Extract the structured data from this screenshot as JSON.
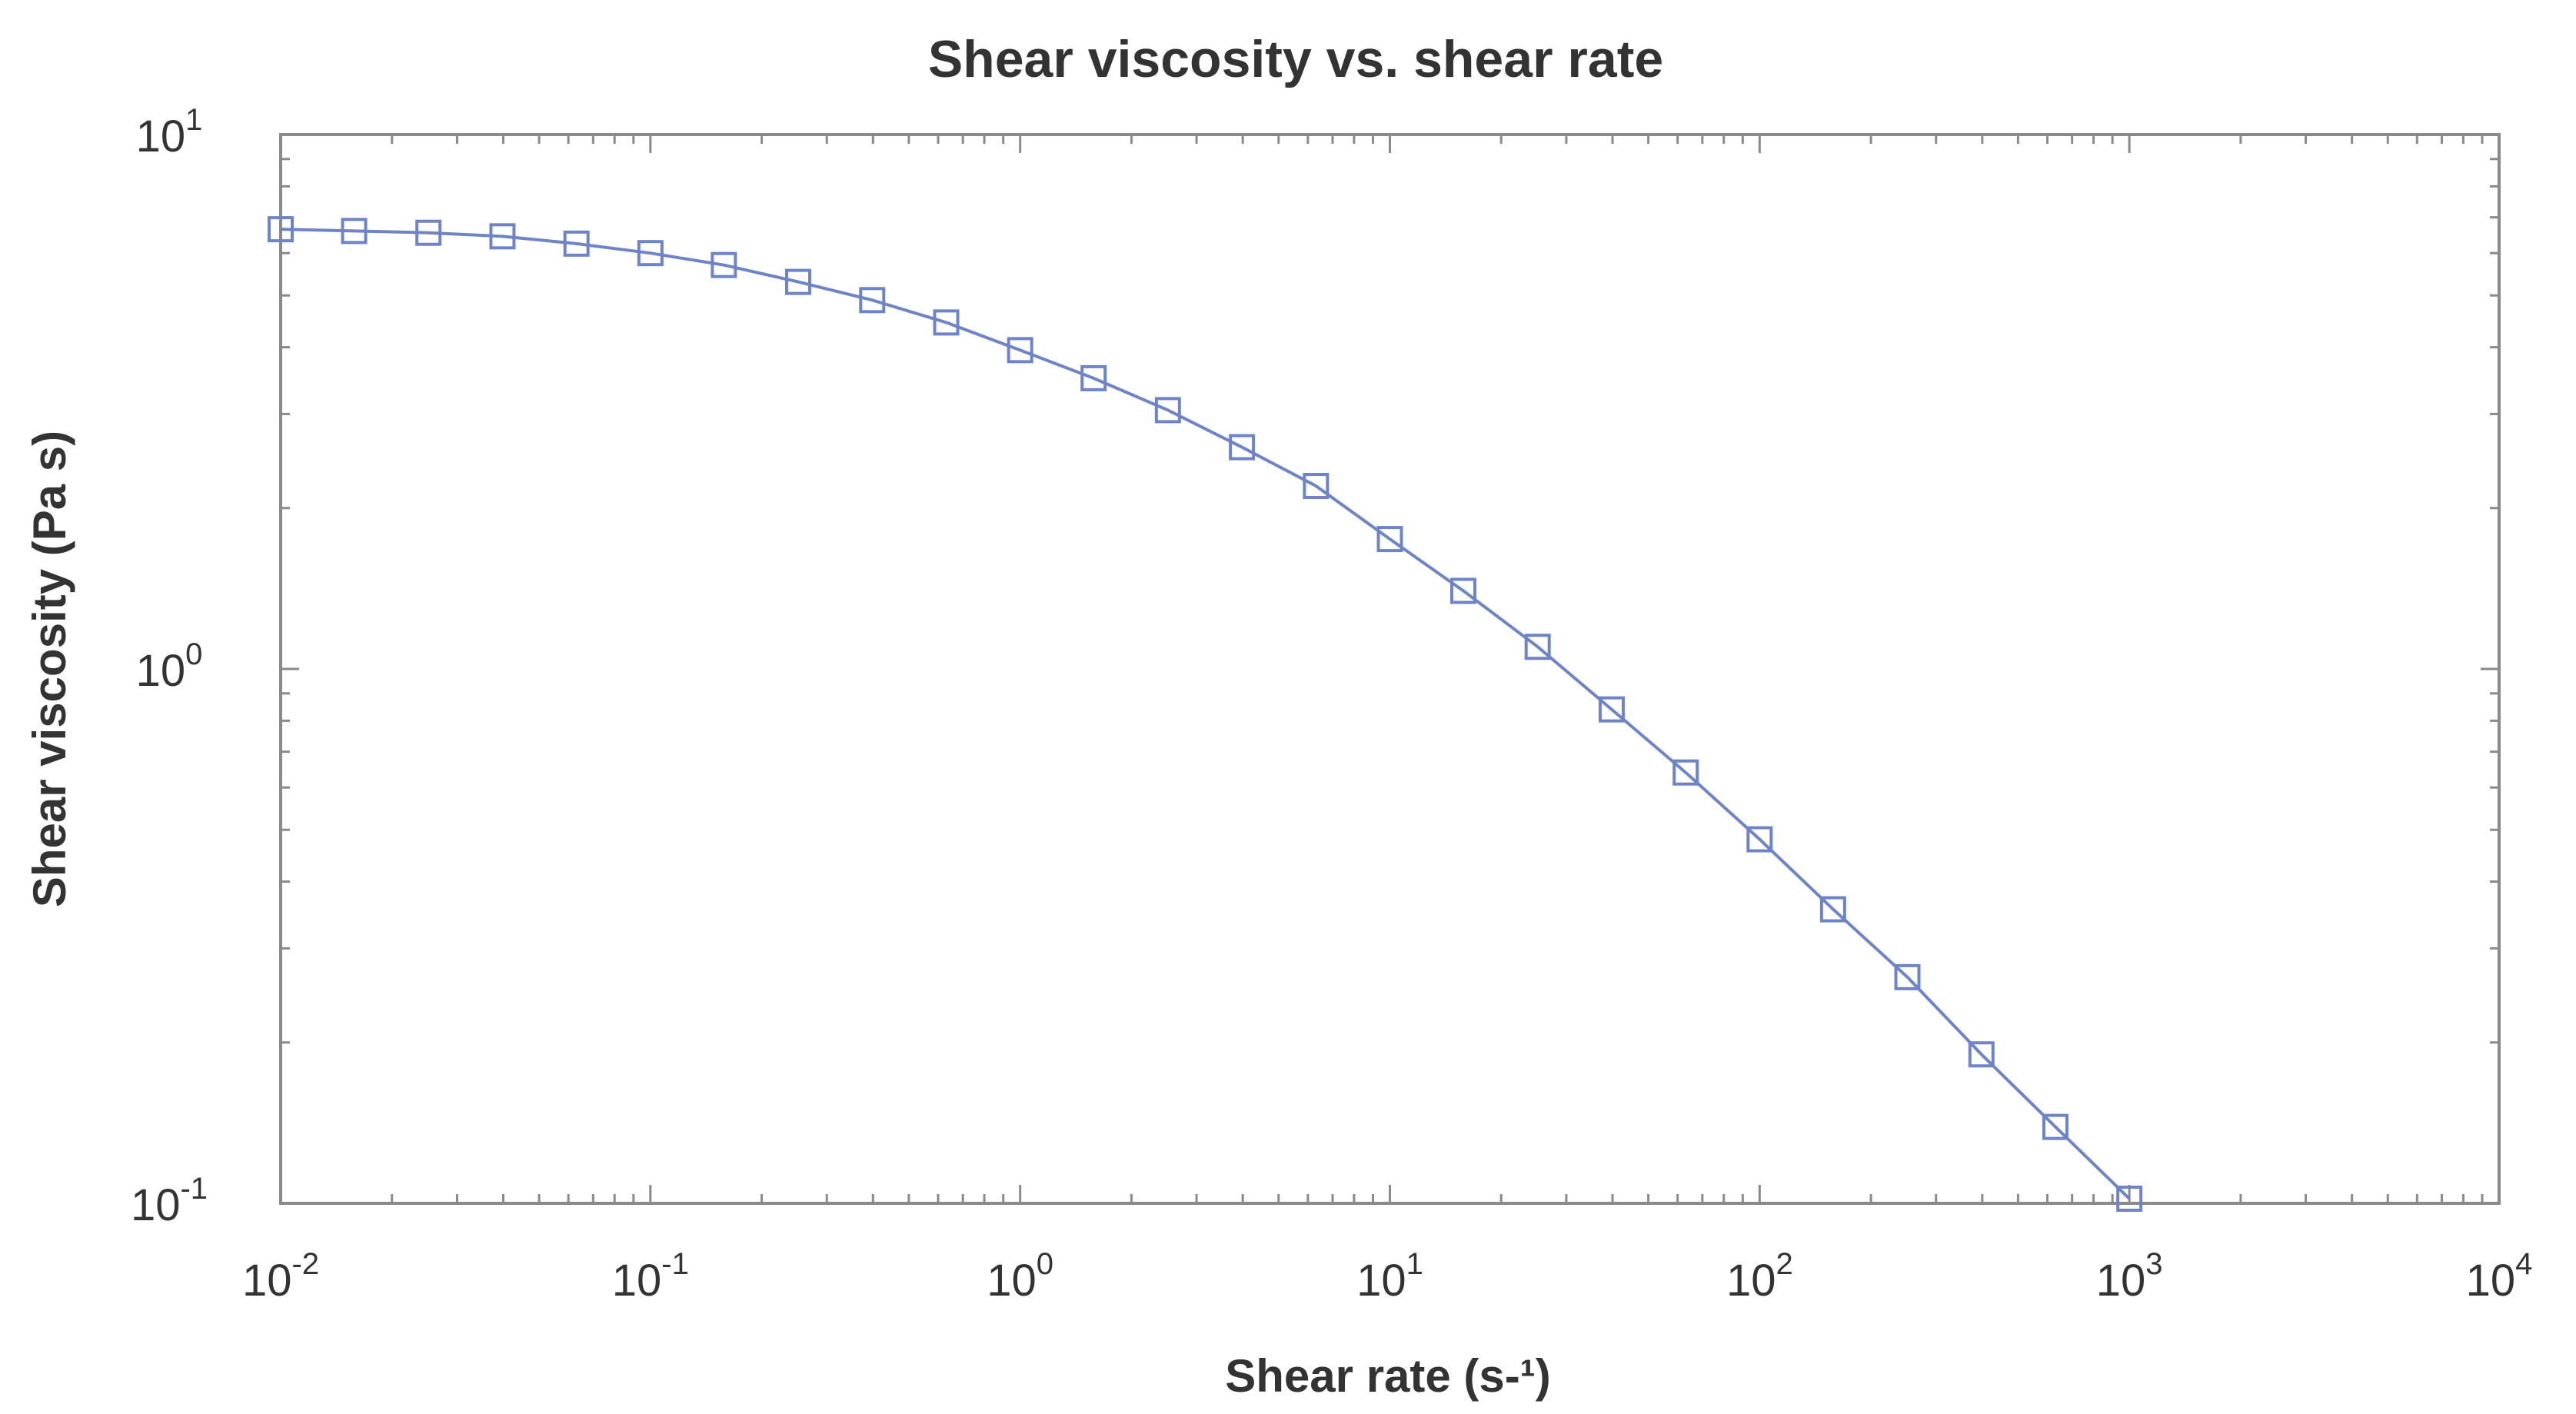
{
  "chart_data": {
    "type": "line",
    "title": "Shear viscosity vs. shear rate",
    "xlabel": "Shear rate (s-¹)",
    "ylabel": "Shear viscosity (Pa s)",
    "xscale": "log",
    "yscale": "log",
    "xlim": [
      0.01,
      10000
    ],
    "ylim": [
      0.1,
      10
    ],
    "grid": false,
    "legend": "none",
    "marker": "square",
    "color": "#6f84c6",
    "x_ticks": [
      {
        "base": "10",
        "exp": "-2"
      },
      {
        "base": "10",
        "exp": "-1"
      },
      {
        "base": "10",
        "exp": "0"
      },
      {
        "base": "10",
        "exp": "1"
      },
      {
        "base": "10",
        "exp": "2"
      },
      {
        "base": "10",
        "exp": "3"
      },
      {
        "base": "10",
        "exp": "4"
      }
    ],
    "y_ticks": [
      {
        "base": "10",
        "exp": "-1"
      },
      {
        "base": "10",
        "exp": "0"
      },
      {
        "base": "10",
        "exp": "1"
      }
    ],
    "series": [
      {
        "x": [
          0.01,
          0.0158,
          0.0251,
          0.0398,
          0.0631,
          0.1,
          0.158,
          0.251,
          0.398,
          0.631,
          1.0,
          1.58,
          2.51,
          3.98,
          6.31,
          10.0,
          15.8,
          25.1,
          39.8,
          63.1,
          100,
          158,
          251,
          398,
          631,
          1000
        ],
        "y": [
          6.65,
          6.6,
          6.55,
          6.45,
          6.25,
          6.0,
          5.7,
          5.3,
          4.9,
          4.45,
          3.95,
          3.5,
          3.05,
          2.6,
          2.2,
          1.75,
          1.4,
          1.1,
          0.84,
          0.64,
          0.48,
          0.355,
          0.265,
          0.19,
          0.139,
          0.102
        ]
      }
    ]
  }
}
